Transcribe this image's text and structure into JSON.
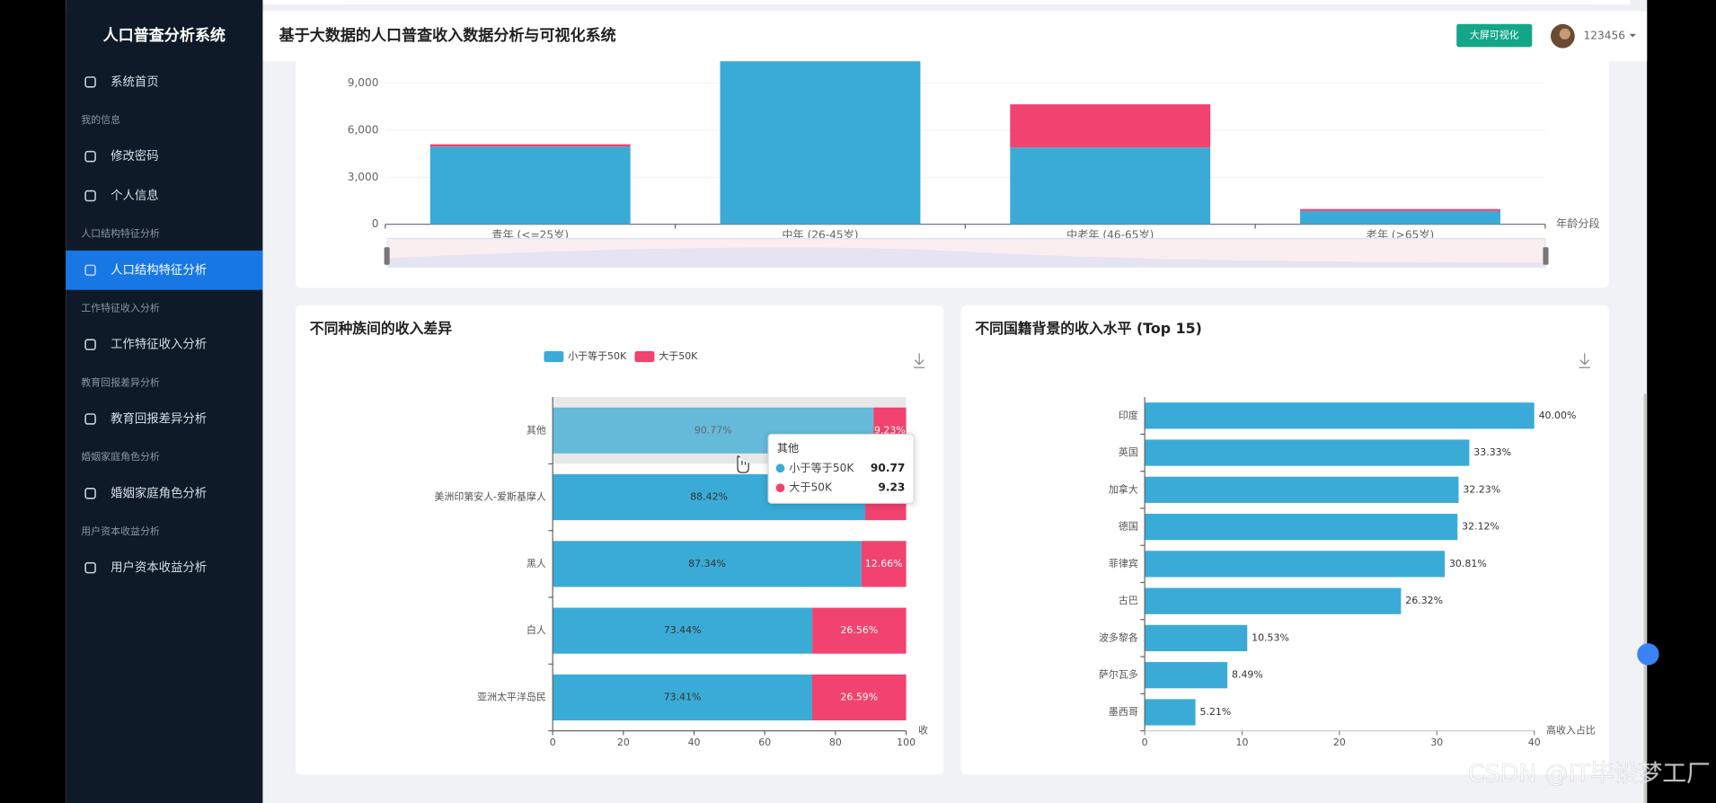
{
  "sidebar": {
    "title": "人口普查分析系统",
    "home": "系统首页",
    "groups": [
      {
        "heading": "我的信息",
        "items": [
          "修改密码",
          "个人信息"
        ]
      },
      {
        "heading": "人口结构特征分析",
        "items": [
          "人口结构特征分析"
        ]
      },
      {
        "heading": "工作特征收入分析",
        "items": [
          "工作特征收入分析"
        ]
      },
      {
        "heading": "教育回报差异分析",
        "items": [
          "教育回报差异分析"
        ]
      },
      {
        "heading": "婚姻家庭角色分析",
        "items": [
          "婚姻家庭角色分析"
        ]
      },
      {
        "heading": "用户资本收益分析",
        "items": [
          "用户资本收益分析"
        ]
      }
    ]
  },
  "header": {
    "title": "基于大数据的人口普查收入数据分析与可视化系统",
    "button": "大屏可视化",
    "user": "123456"
  },
  "charts": [
    {
      "type": "bar",
      "stacked": true,
      "categories": [
        "青年 (<=25岁)",
        "中年 (26-45岁)",
        "中老年 (46-65岁)",
        "老年 (>65岁)"
      ],
      "series": [
        {
          "color": "#3aabd6",
          "values": [
            4950,
            10500,
            4900,
            850
          ]
        },
        {
          "color": "#f2426f",
          "values": [
            150,
            0,
            2750,
            120
          ]
        }
      ],
      "ylim": [
        0,
        10500
      ],
      "yticks": [
        0,
        {
          "value": 3000,
          "label": "3,000"
        },
        {
          "value": 6000,
          "label": "6,000"
        },
        {
          "value": 9000,
          "label": "9,000"
        }
      ],
      "xlabel": "年龄分段"
    },
    {
      "type": "bar",
      "orientation": "horizontal",
      "stacked": true,
      "title": "不同种族间的收入差异",
      "categories": [
        "亚洲太平洋岛民",
        "白人",
        "黑人",
        "美洲印第安人-爱斯基摩人",
        "其他"
      ],
      "series": [
        {
          "name": "小于等于50K",
          "color": "#3aabd6",
          "values": [
            73.41,
            73.44,
            87.34,
            88.42,
            90.77
          ],
          "value_labels": [
            "73.41%",
            "73.44%",
            "87.34%",
            "88.42%",
            "90.77%"
          ]
        },
        {
          "name": "大于50K",
          "color": "#f2426f",
          "values": [
            26.59,
            26.56,
            12.66,
            11.58,
            9.23
          ],
          "value_labels": [
            "26.59%",
            "26.56%",
            "12.66%",
            null,
            "9.23%"
          ]
        }
      ],
      "xlim": [
        0,
        100
      ],
      "xticks": [
        0,
        20,
        40,
        60,
        80,
        100
      ],
      "xlabel": "收"
    },
    {
      "type": "bar",
      "orientation": "horizontal",
      "title": "不同国籍背景的收入水平 (Top 15)",
      "categories": [
        "墨西哥",
        "萨尔瓦多",
        "波多黎各",
        "古巴",
        "菲律宾",
        "德国",
        "加拿大",
        "英国",
        "印度"
      ],
      "color": "#3aabd6",
      "values": [
        5.21,
        8.49,
        10.53,
        26.32,
        30.81,
        32.12,
        32.23,
        33.33,
        40.0
      ],
      "value_labels": [
        "5.21%",
        "8.49%",
        "10.53%",
        "26.32%",
        "30.81%",
        "32.12%",
        "32.23%",
        "33.33%",
        "40.00%"
      ],
      "xlim": [
        0,
        40
      ],
      "xticks": [
        0,
        10,
        20,
        30,
        40
      ],
      "xlabel": "高收入占比"
    }
  ],
  "watermark": "CSDN @IT毕设梦工厂"
}
